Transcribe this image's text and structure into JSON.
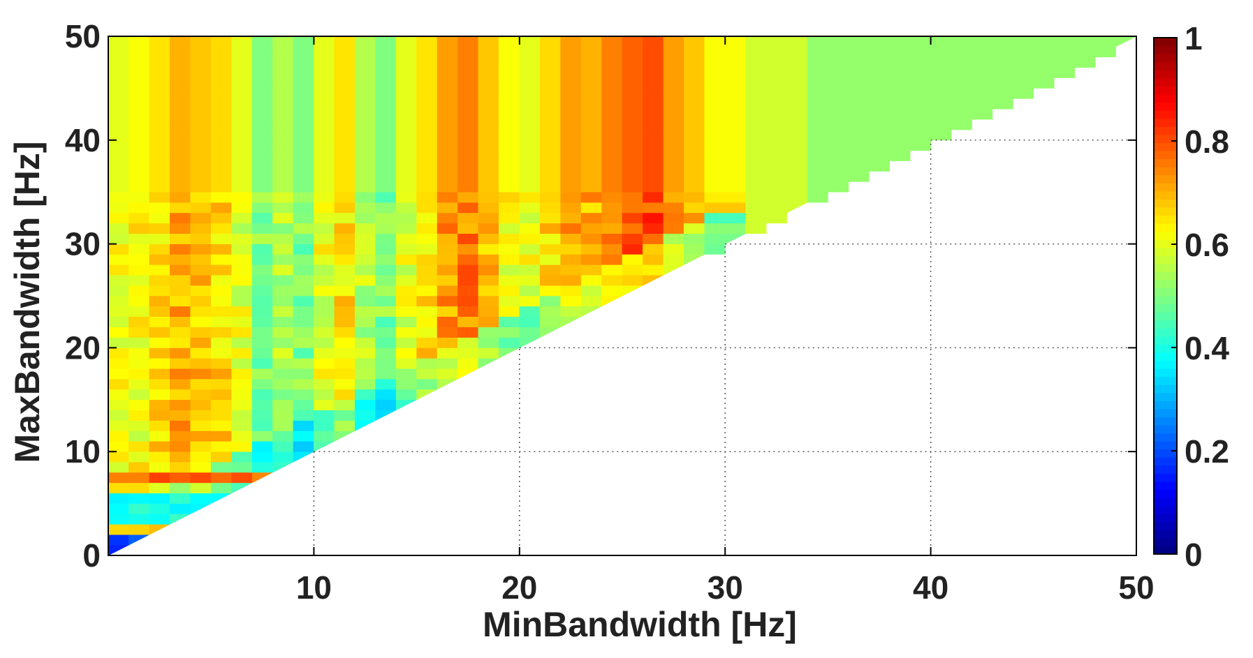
{
  "chart_data": {
    "type": "heatmap",
    "title": "",
    "xlabel": "MinBandwidth [Hz]",
    "ylabel": "MaxBandwidth [Hz]",
    "xlim": [
      0,
      50
    ],
    "ylim": [
      0,
      50
    ],
    "xticks": [
      "10",
      "20",
      "30",
      "40",
      "50"
    ],
    "xtick_values": [
      10,
      20,
      30,
      40,
      50
    ],
    "yticks": [
      "0",
      "10",
      "20",
      "30",
      "40",
      "50"
    ],
    "ytick_values": [
      0,
      10,
      20,
      30,
      40,
      50
    ],
    "grid": true,
    "colorbar": {
      "colormap": "jet",
      "range": [
        0,
        1
      ],
      "ticks": [
        "0",
        "0.2",
        "0.4",
        "0.6",
        "0.8",
        "1"
      ],
      "tick_values": [
        0,
        0.2,
        0.4,
        0.6,
        0.8,
        1
      ]
    },
    "valid_region": "MaxBandwidth > MinBandwidth",
    "x_bin_edges": [
      0,
      1,
      2,
      3,
      4,
      5,
      6,
      7,
      8,
      9,
      10,
      11,
      12,
      13,
      14,
      15,
      16,
      17,
      18,
      19,
      20,
      21,
      22,
      23,
      24,
      25,
      26,
      27,
      28,
      29,
      31,
      34,
      50
    ],
    "column_values_high_maxbw": [
      0.6,
      0.62,
      0.65,
      0.7,
      0.68,
      0.66,
      0.6,
      0.5,
      0.55,
      0.5,
      0.6,
      0.65,
      0.55,
      0.5,
      0.6,
      0.65,
      0.72,
      0.75,
      0.68,
      0.62,
      0.6,
      0.66,
      0.72,
      0.7,
      0.75,
      0.78,
      0.8,
      0.72,
      0.68,
      0.62,
      0.58,
      0.52
    ],
    "lowband_rows": [
      {
        "y": [
          0,
          2
        ],
        "value": 0.2
      },
      {
        "y": [
          2,
          3
        ],
        "value": 0.7
      },
      {
        "y": [
          3,
          6
        ],
        "value": 0.4
      },
      {
        "y": [
          6.5,
          8
        ],
        "value": 0.78
      }
    ]
  }
}
